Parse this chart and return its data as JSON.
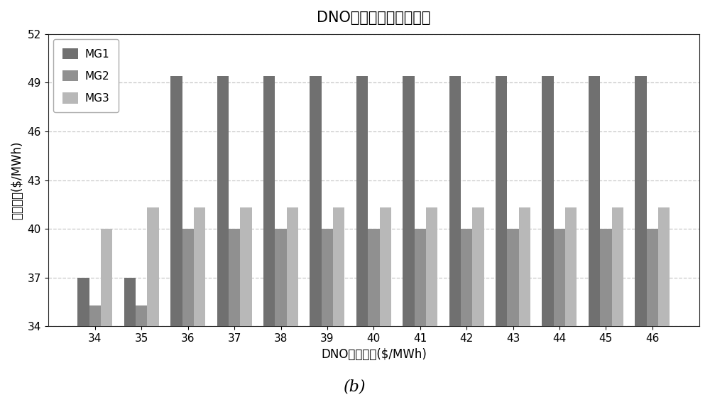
{
  "title": "DNO与微网交易价格结果",
  "xlabel": "DNO购电价格($/MWh)",
  "ylabel": "交易价格($/MWh)",
  "subtitle": "(b)",
  "categories": [
    34,
    35,
    36,
    37,
    38,
    39,
    40,
    41,
    42,
    43,
    44,
    45,
    46
  ],
  "series": {
    "MG1": [
      37.0,
      37.0,
      49.4,
      49.4,
      49.4,
      49.4,
      49.4,
      49.4,
      49.4,
      49.4,
      49.4,
      49.4,
      49.4
    ],
    "MG2": [
      35.3,
      35.3,
      40.0,
      40.0,
      40.0,
      40.0,
      40.0,
      40.0,
      40.0,
      40.0,
      40.0,
      40.0,
      40.0
    ],
    "MG3": [
      40.0,
      41.3,
      41.3,
      41.3,
      41.3,
      41.3,
      41.3,
      41.3,
      41.3,
      41.3,
      41.3,
      41.3,
      41.3
    ]
  },
  "colors": {
    "MG1": "#707070",
    "MG2": "#909090",
    "MG3": "#b8b8b8"
  },
  "ylim": [
    34,
    52
  ],
  "yticks": [
    34,
    37,
    40,
    43,
    46,
    49,
    52
  ],
  "grid_color": "#c8c8c8",
  "background_color": "#ffffff",
  "bar_width": 0.25,
  "title_fontsize": 15,
  "axis_fontsize": 12,
  "tick_fontsize": 11,
  "legend_fontsize": 11
}
